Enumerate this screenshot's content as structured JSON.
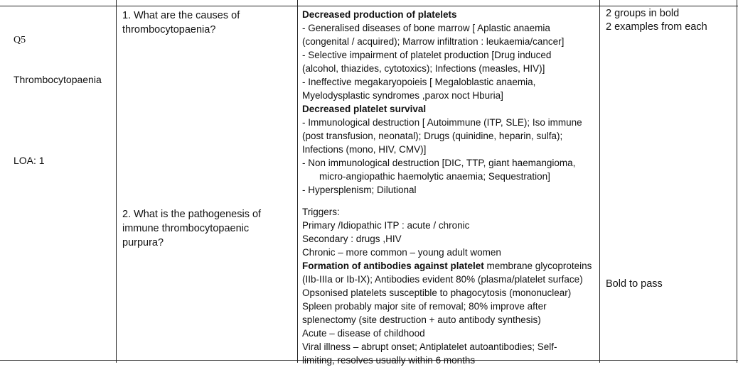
{
  "row": {
    "id": "Q5",
    "topic": "Thrombocytopaenia",
    "loa": "LOA: 1"
  },
  "questions": [
    {
      "lines": [
        "1. What are the causes of",
        "thrombocytopaenia?"
      ]
    },
    {
      "lines": [
        "2. What is the pathogenesis of",
        "immune thrombocytopaenic",
        "purpura?"
      ]
    }
  ],
  "answers": {
    "causes": [
      {
        "text": "Decreased production of platelets",
        "bold": true
      },
      {
        "text": "- Generalised diseases of bone marrow [ Aplastic anaemia"
      },
      {
        "text": "(congenital / acquired);  Marrow infiltration : leukaemia/cancer]"
      },
      {
        "text": "- Selective impairment of platelet production [Drug induced"
      },
      {
        "text": "(alcohol, thiazides, cytotoxics); Infections (measles, HIV)]"
      },
      {
        "text": "- Ineffective megakaryopoieis [ Megaloblastic anaemia,"
      },
      {
        "text": "Myelodysplastic syndromes ,parox noct Hburia]"
      },
      {
        "text": "Decreased platelet survival",
        "bold": true
      },
      {
        "text": "- Immunological destruction [ Autoimmune (ITP, SLE);  Iso immune"
      },
      {
        "text": "(post transfusion, neonatal);  Drugs (quinidine, heparin, sulfa);"
      },
      {
        "text": "Infections (mono, HIV, CMV)]"
      },
      {
        "text": "- Non immunological destruction [DIC, TTP, giant haemangioma,"
      },
      {
        "text": "micro-angiopathic haemolytic anaemia; Sequestration]",
        "indent": true
      },
      {
        "text": "- Hypersplenism; Dilutional"
      }
    ],
    "pathogenesis": [
      {
        "text": "Triggers:"
      },
      {
        "text": "Primary /Idiopathic ITP  : acute / chronic"
      },
      {
        "text": "Secondary : drugs ,HIV"
      },
      {
        "text": "Chronic – more common – young adult women"
      },
      {
        "parts": [
          {
            "text": "Formation of antibodies against platelet",
            "bold": true
          },
          {
            "text": " membrane glycoproteins"
          }
        ]
      },
      {
        "text": "(IIb-IIIa or Ib-IX); Antibodies evident 80% (plasma/platelet surface)"
      },
      {
        "text": "Opsonised platelets susceptible to phagocytosis (mononuclear)"
      },
      {
        "text": "Spleen probably major site of removal; 80% improve after"
      },
      {
        "text": "splenectomy (site destruction + auto antibody synthesis)"
      },
      {
        "text": "Acute – disease of childhood"
      },
      {
        "text": "Viral illness – abrupt onset; Antiplatelet autoantibodies; Self-"
      },
      {
        "text": "limiting, resolves usually within 6 months"
      }
    ]
  },
  "marking": {
    "q1": [
      "2 groups in bold",
      "2 examples from each"
    ],
    "q2": [
      "Bold to pass"
    ]
  }
}
